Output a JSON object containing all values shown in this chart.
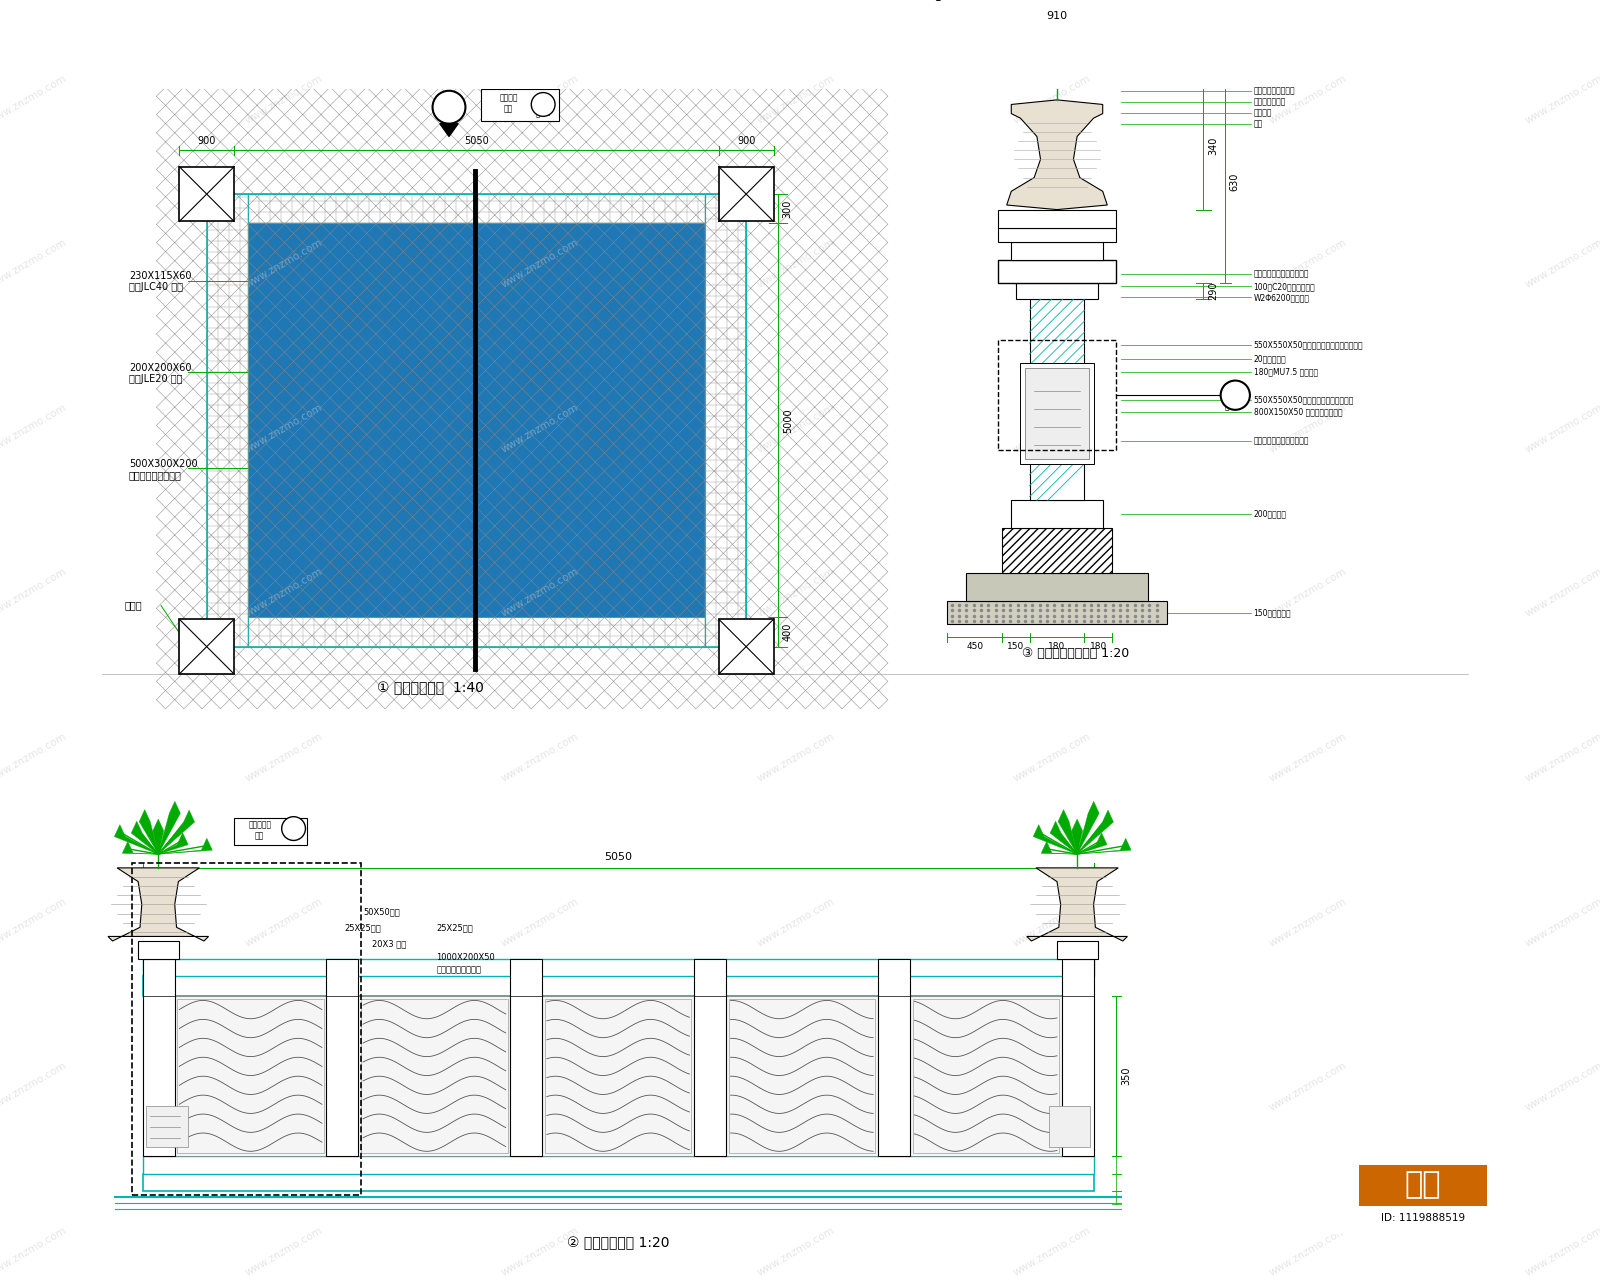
{
  "bg_color": "#ffffff",
  "line_color": "#000000",
  "cyan_color": "#00b5b5",
  "green_color": "#00aa00",
  "dark_line": "#333333",
  "section1_title": "① 景观桥平面图  1:40",
  "section2_title": "② 景观桥立面图 1:20",
  "section3_title": "③ 景观柱立、剖面图 1:20",
  "logo_text": "知末",
  "id_text": "ID: 1119888519",
  "ann1_line1": "230X115X60",
  "ann1_line2": "混凞JLC40 铺面",
  "ann2_line1": "200X200X60",
  "ann2_line2": "混凞JLE20 铺面",
  "ann3_line1": "500X300X200",
  "ann3_line2": "大理石芒鸻灰铺面砖",
  "ann4": "栏杆柱",
  "dim_900": "900",
  "dim_5050": "5050",
  "dim_300": "300",
  "dim_400": "400",
  "dim_5000": "5000",
  "dim_910": "910",
  "dim_340": "340",
  "dim_630": "630",
  "dim_290": "290",
  "dim_450": "450",
  "dim_150": "150",
  "dim_180a": "180",
  "dim_180b": "180"
}
